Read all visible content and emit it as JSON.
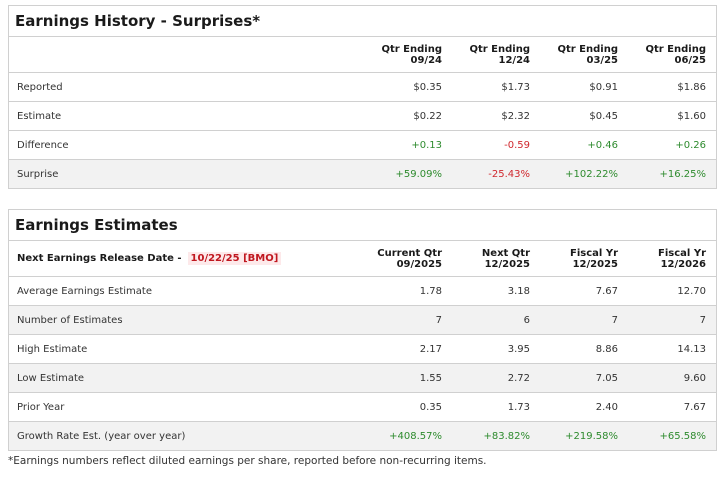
{
  "history": {
    "title": "Earnings History - Surprises*",
    "columns": [
      {
        "line1": "Qtr Ending",
        "line2": "09/24"
      },
      {
        "line1": "Qtr Ending",
        "line2": "12/24"
      },
      {
        "line1": "Qtr Ending",
        "line2": "03/25"
      },
      {
        "line1": "Qtr Ending",
        "line2": "06/25"
      }
    ],
    "rows": [
      {
        "label": "Reported",
        "values": [
          "$0.35",
          "$1.73",
          "$0.91",
          "$1.86"
        ]
      },
      {
        "label": "Estimate",
        "values": [
          "$0.22",
          "$2.32",
          "$0.45",
          "$1.60"
        ]
      },
      {
        "label": "Difference",
        "values": [
          "+0.13",
          "-0.59",
          "+0.46",
          "+0.26"
        ]
      },
      {
        "label": "Surprise",
        "values": [
          "+59.09%",
          "-25.43%",
          "+102.22%",
          "+16.25%"
        ]
      }
    ]
  },
  "estimates": {
    "title": "Earnings Estimates",
    "release_label": "Next Earnings Release Date -",
    "release_date": "10/22/25 [BMO]",
    "columns": [
      {
        "line1": "Current Qtr",
        "line2": "09/2025"
      },
      {
        "line1": "Next Qtr",
        "line2": "12/2025"
      },
      {
        "line1": "Fiscal Yr",
        "line2": "12/2025"
      },
      {
        "line1": "Fiscal Yr",
        "line2": "12/2026"
      }
    ],
    "rows": [
      {
        "label": "Average Earnings Estimate",
        "values": [
          "1.78",
          "3.18",
          "7.67",
          "12.70"
        ]
      },
      {
        "label": "Number of Estimates",
        "values": [
          "7",
          "6",
          "7",
          "7"
        ]
      },
      {
        "label": "High Estimate",
        "values": [
          "2.17",
          "3.95",
          "8.86",
          "14.13"
        ]
      },
      {
        "label": "Low Estimate",
        "values": [
          "1.55",
          "2.72",
          "7.05",
          "9.60"
        ]
      },
      {
        "label": "Prior Year",
        "values": [
          "0.35",
          "1.73",
          "2.40",
          "7.67"
        ]
      },
      {
        "label": "Growth Rate Est. (year over year)",
        "values": [
          "+408.57%",
          "+83.82%",
          "+219.58%",
          "+65.58%"
        ]
      }
    ]
  },
  "footnote": "*Earnings numbers reflect diluted earnings per share, reported before non-recurring items.",
  "colors": {
    "positive": "#2e8b2e",
    "negative": "#d0282e",
    "release_highlight": "#c0171f"
  }
}
